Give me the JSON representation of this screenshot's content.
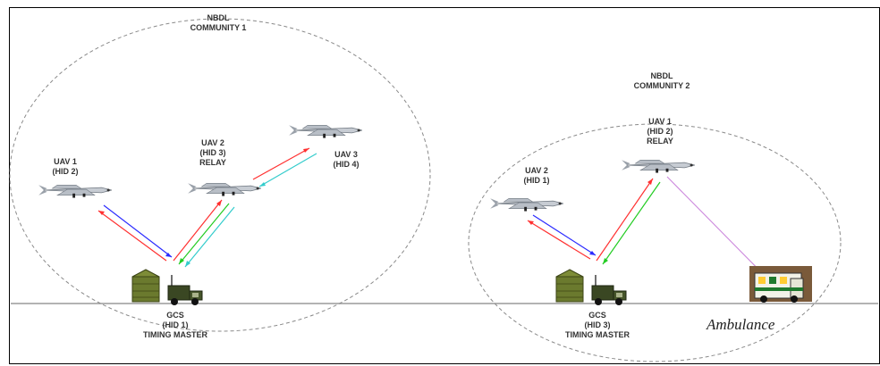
{
  "community1": {
    "title_line1": "NBDL",
    "title_line2": "COMMUNITY 1",
    "uav1": {
      "line1": "UAV 1",
      "line2": "(HID 2)"
    },
    "uav2": {
      "line1": "UAV 2",
      "line2": "(HID 3)",
      "line3": "RELAY"
    },
    "uav3": {
      "line1": "UAV 3",
      "line2": "(HID 4)"
    },
    "gcs": {
      "line1": "GCS",
      "line2": "(HID 1)",
      "line3": "TIMING MASTER"
    }
  },
  "community2": {
    "title_line1": "NBDL",
    "title_line2": "COMMUNITY 2",
    "uav1": {
      "line1": "UAV 1",
      "line2": "(HID 2)",
      "line3": "RELAY"
    },
    "uav2": {
      "line1": "UAV 2",
      "line2": "(HID 1)"
    },
    "gcs": {
      "line1": "GCS",
      "line2": "(HID 3)",
      "line3": "TIMING MASTER"
    },
    "ambulance_label": "Ambulance"
  },
  "colors": {
    "link_red": "#ff3030",
    "link_blue": "#2a2aff",
    "link_green": "#22cc22",
    "link_cyan": "#33cccc",
    "link_purple": "#cc88dd",
    "community_border": "#8a8a8a",
    "ground": "#9a9a9a",
    "shelter": "#6b7a2e",
    "truck": "#2f3a1e"
  }
}
